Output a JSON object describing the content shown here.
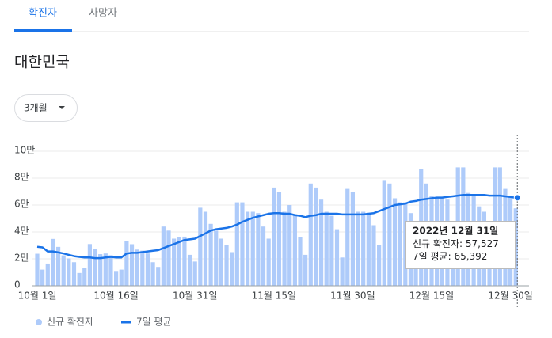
{
  "tabs": [
    "확진자",
    "사망자"
  ],
  "region": "대한민국",
  "range_selector": "3개월",
  "chart_data": {
    "type": "bar-line",
    "categories": [
      "10월 1일",
      null,
      null,
      null,
      null,
      null,
      null,
      null,
      null,
      null,
      null,
      null,
      null,
      null,
      null,
      "10월 16일",
      null,
      null,
      null,
      null,
      null,
      null,
      null,
      null,
      null,
      null,
      null,
      null,
      null,
      null,
      "10월 31일",
      null,
      null,
      null,
      null,
      null,
      null,
      null,
      null,
      null,
      null,
      null,
      null,
      null,
      null,
      "11월 15일",
      null,
      null,
      null,
      null,
      null,
      null,
      null,
      null,
      null,
      null,
      null,
      null,
      null,
      null,
      "11월 30일",
      null,
      null,
      null,
      null,
      null,
      null,
      null,
      null,
      null,
      null,
      null,
      null,
      null,
      null,
      "12월 15일",
      null,
      null,
      null,
      null,
      null,
      null,
      null,
      null,
      null,
      null,
      null,
      null,
      null,
      null,
      "12월 30일",
      null
    ],
    "series": [
      {
        "name": "신규 확진자",
        "kind": "bar",
        "color": "#aecbfa",
        "values": [
          23800,
          12000,
          16500,
          34800,
          28900,
          22600,
          20300,
          17500,
          9500,
          13100,
          31000,
          27400,
          23500,
          24000,
          22700,
          11000,
          12000,
          33400,
          30900,
          26900,
          26100,
          24000,
          17500,
          14000,
          44000,
          41000,
          35000,
          36000,
          36500,
          23000,
          18000,
          58000,
          55000,
          46000,
          41000,
          35000,
          30000,
          25000,
          62000,
          62000,
          55000,
          55000,
          54000,
          44000,
          35000,
          73000,
          70000,
          55000,
          60000,
          53000,
          36000,
          23000,
          76000,
          73000,
          64000,
          55000,
          52000,
          42000,
          21000,
          72000,
          70000,
          55000,
          55000,
          54000,
          45000,
          30000,
          78000,
          76000,
          65000,
          62000,
          62000,
          54000,
          34000,
          87000,
          76000,
          67000,
          65000,
          65000,
          64000,
          39000,
          88000,
          88000,
          69000,
          67000,
          59000,
          55000,
          27000,
          88000,
          88000,
          72000,
          67000,
          57527
        ]
      },
      {
        "name": "7일 평균",
        "kind": "line",
        "color": "#1a73e8",
        "values": [
          29000,
          28500,
          25500,
          25500,
          24800,
          24000,
          23000,
          22000,
          21500,
          21000,
          21000,
          20500,
          20500,
          21000,
          21500,
          21000,
          21000,
          24000,
          24500,
          24500,
          25000,
          25500,
          26000,
          26500,
          28000,
          29500,
          31000,
          32500,
          34000,
          34500,
          35000,
          37000,
          39000,
          41000,
          42000,
          42500,
          43000,
          44000,
          45500,
          47500,
          49000,
          50500,
          51500,
          52500,
          53500,
          54000,
          54000,
          53500,
          53500,
          52500,
          52000,
          51000,
          52000,
          52500,
          53500,
          53500,
          53500,
          53500,
          53000,
          53000,
          53000,
          53000,
          53000,
          53500,
          54000,
          55500,
          57000,
          58500,
          60000,
          60500,
          61000,
          62500,
          63000,
          64000,
          64500,
          65000,
          65500,
          65500,
          66000,
          66500,
          67000,
          67500,
          67500,
          67500,
          67500,
          67500,
          67000,
          67000,
          67000,
          66500,
          66000,
          65392
        ]
      }
    ],
    "ylim": [
      0,
      100000
    ],
    "yticks": [
      0,
      {
        "value": 20000,
        "label": "2만"
      },
      {
        "value": 40000,
        "label": "4만"
      },
      {
        "value": 60000,
        "label": "6만"
      },
      {
        "value": 80000,
        "label": "8만"
      },
      {
        "value": 100000,
        "label": "10만"
      }
    ],
    "grid": true,
    "tooltip": {
      "title": "2022년 12월 31일",
      "rows": [
        {
          "label": "신규 확진자:",
          "value_label": "57,527"
        },
        {
          "label": "7일 평균:",
          "value_label": "65,392"
        }
      ]
    }
  }
}
